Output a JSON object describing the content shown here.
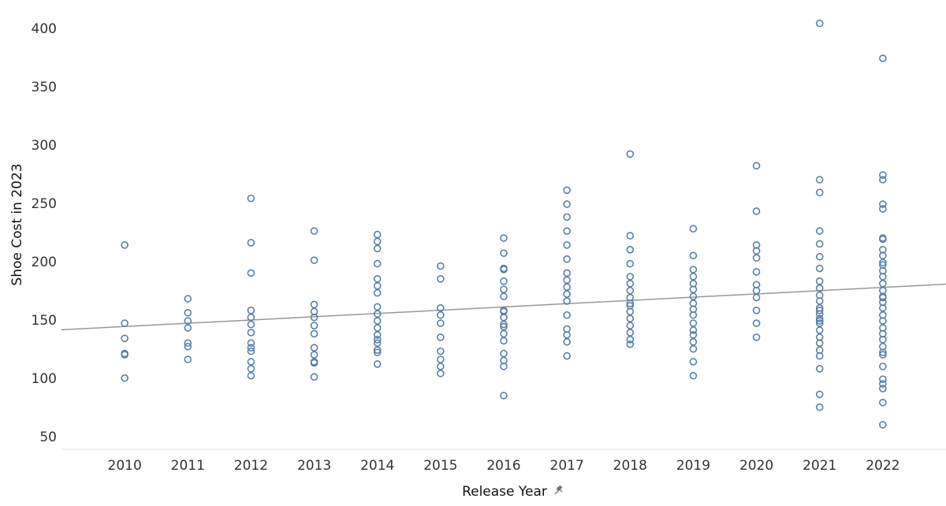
{
  "chart_data": {
    "type": "scatter",
    "x_label": "Release Year",
    "y_label": "Shoe Cost in 2023",
    "color": "#5b80aa",
    "x": [
      2010,
      2010,
      2010,
      2010,
      2010,
      2010,
      2011,
      2011,
      2011,
      2011,
      2011,
      2011,
      2011,
      2012,
      2012,
      2012,
      2012,
      2012,
      2012,
      2012,
      2012,
      2012,
      2012,
      2012,
      2012,
      2012,
      2013,
      2013,
      2013,
      2013,
      2013,
      2013,
      2013,
      2013,
      2013,
      2013,
      2013,
      2013,
      2014,
      2014,
      2014,
      2014,
      2014,
      2014,
      2014,
      2014,
      2014,
      2014,
      2014,
      2014,
      2014,
      2014,
      2014,
      2014,
      2014,
      2015,
      2015,
      2015,
      2015,
      2015,
      2015,
      2015,
      2015,
      2015,
      2015,
      2016,
      2016,
      2016,
      2016,
      2016,
      2016,
      2016,
      2016,
      2016,
      2016,
      2016,
      2016,
      2016,
      2016,
      2016,
      2016,
      2016,
      2016,
      2017,
      2017,
      2017,
      2017,
      2017,
      2017,
      2017,
      2017,
      2017,
      2017,
      2017,
      2017,
      2017,
      2017,
      2017,
      2017,
      2018,
      2018,
      2018,
      2018,
      2018,
      2018,
      2018,
      2018,
      2018,
      2018,
      2018,
      2018,
      2018,
      2018,
      2018,
      2018,
      2019,
      2019,
      2019,
      2019,
      2019,
      2019,
      2019,
      2019,
      2019,
      2019,
      2019,
      2019,
      2019,
      2019,
      2019,
      2019,
      2019,
      2020,
      2020,
      2020,
      2020,
      2020,
      2020,
      2020,
      2020,
      2020,
      2020,
      2020,
      2020,
      2021,
      2021,
      2021,
      2021,
      2021,
      2021,
      2021,
      2021,
      2021,
      2021,
      2021,
      2021,
      2021,
      2021,
      2021,
      2021,
      2021,
      2021,
      2021,
      2021,
      2021,
      2021,
      2021,
      2021,
      2021,
      2022,
      2022,
      2022,
      2022,
      2022,
      2022,
      2022,
      2022,
      2022,
      2022,
      2022,
      2022,
      2022,
      2022,
      2022,
      2022,
      2022,
      2022,
      2022,
      2022,
      2022,
      2022,
      2022,
      2022,
      2022,
      2022,
      2022,
      2022,
      2022,
      2022,
      2022,
      2022,
      2022
    ],
    "values": [
      215,
      148,
      135,
      122,
      121,
      101,
      169,
      157,
      150,
      144,
      131,
      128,
      117,
      255,
      217,
      191,
      159,
      153,
      147,
      140,
      131,
      127,
      124,
      115,
      109,
      103,
      227,
      202,
      164,
      158,
      153,
      146,
      139,
      127,
      121,
      115,
      114,
      102,
      224,
      218,
      212,
      199,
      186,
      180,
      174,
      162,
      156,
      150,
      144,
      138,
      134,
      131,
      125,
      123,
      113,
      197,
      186,
      161,
      155,
      148,
      136,
      124,
      117,
      111,
      105,
      221,
      208,
      195,
      194,
      184,
      177,
      171,
      159,
      158,
      153,
      147,
      145,
      139,
      133,
      122,
      116,
      111,
      86,
      262,
      250,
      239,
      227,
      215,
      203,
      191,
      185,
      179,
      173,
      167,
      155,
      143,
      138,
      132,
      120,
      293,
      223,
      211,
      199,
      188,
      182,
      176,
      170,
      165,
      163,
      158,
      152,
      146,
      140,
      134,
      130,
      229,
      206,
      194,
      188,
      182,
      177,
      171,
      165,
      160,
      155,
      148,
      142,
      138,
      132,
      126,
      115,
      103,
      283,
      244,
      215,
      210,
      204,
      192,
      181,
      176,
      170,
      159,
      148,
      136,
      405,
      271,
      260,
      227,
      216,
      205,
      195,
      184,
      178,
      172,
      167,
      161,
      159,
      156,
      152,
      150,
      148,
      142,
      136,
      131,
      125,
      120,
      109,
      87,
      76,
      375,
      275,
      271,
      250,
      246,
      221,
      220,
      211,
      206,
      200,
      198,
      193,
      188,
      182,
      176,
      171,
      170,
      166,
      161,
      155,
      150,
      144,
      139,
      134,
      128,
      123,
      121,
      111,
      100,
      96,
      92,
      80,
      61
    ],
    "trend": {
      "x": [
        2009,
        2023
      ],
      "values": [
        142.4,
        181.5
      ],
      "color": "#999999"
    },
    "xlim": [
      2009,
      2023
    ],
    "xticks": [
      2010,
      2011,
      2012,
      2013,
      2014,
      2015,
      2016,
      2017,
      2018,
      2019,
      2020,
      2021,
      2022
    ],
    "ylim": [
      40,
      425
    ],
    "yticks": [
      50,
      100,
      150,
      200,
      250,
      300,
      350,
      400
    ]
  }
}
